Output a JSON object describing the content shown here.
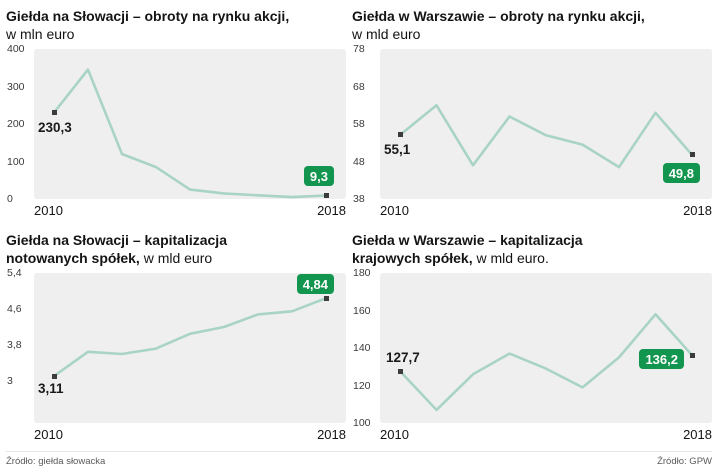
{
  "footer": {
    "left_source": "Źródło: giełda słowacka",
    "right_source": "Źródło: GPW"
  },
  "colors": {
    "line": "#a9d4c5",
    "badge_bg": "#12954e",
    "badge_text": "#ffffff",
    "panel_bg": "#efefef",
    "marker": "#3c3c3c"
  },
  "chart_data": [
    {
      "type": "line",
      "title_line1": "Giełda na Słowacji – obroty na rynku akcji,",
      "title_line2_bold": "",
      "title_line2_normal": "w mln euro",
      "x": [
        "2010",
        "2011",
        "2012",
        "2013",
        "2014",
        "2015",
        "2016",
        "2017",
        "2018"
      ],
      "values": [
        230.3,
        345,
        120,
        85,
        25,
        15,
        10,
        5,
        9.3
      ],
      "ylim": [
        0,
        400
      ],
      "yticks": [
        "400",
        "300",
        "200",
        "100",
        "0"
      ],
      "scale_frac": 1,
      "grid": false,
      "legend": "none",
      "first_label": "230,3",
      "last_label": "9,3",
      "x_first": "2010",
      "x_last": "2018"
    },
    {
      "type": "line",
      "title_line1": "Giełda w Warszawie – obroty na rynku akcji,",
      "title_line2_bold": "",
      "title_line2_normal": "w mld euro",
      "x": [
        "2010",
        "2011",
        "2012",
        "2013",
        "2014",
        "2015",
        "2016",
        "2017",
        "2018"
      ],
      "values": [
        55.1,
        63,
        47,
        60,
        55,
        52.5,
        46.5,
        61,
        49.8
      ],
      "ylim": [
        38,
        78
      ],
      "yticks": [
        "78",
        "68",
        "58",
        "48",
        "38"
      ],
      "scale_frac": 1,
      "grid": false,
      "legend": "none",
      "first_label": "55,1",
      "last_label": "49,8",
      "x_first": "2010",
      "x_last": "2018"
    },
    {
      "type": "line",
      "title_line1": "Giełda na Słowacji – kapitalizacja",
      "title_line2_bold": "notowanych spółek,",
      "title_line2_normal": " w mld euro",
      "x": [
        "2010",
        "2011",
        "2012",
        "2013",
        "2014",
        "2015",
        "2016",
        "2017",
        "2018"
      ],
      "values": [
        3.11,
        3.65,
        3.6,
        3.72,
        4.05,
        4.2,
        4.48,
        4.55,
        4.84
      ],
      "ylim": [
        3,
        5.4
      ],
      "yticks": [
        "5,4",
        "4,6",
        "3,8",
        "3"
      ],
      "scale_frac": 0.72,
      "grid": false,
      "legend": "none",
      "first_label": "3,11",
      "last_label": "4,84",
      "x_first": "2010",
      "x_last": "2018"
    },
    {
      "type": "line",
      "title_line1": "Giełda w Warszawie – kapitalizacja",
      "title_line2_bold": "krajowych spółek,",
      "title_line2_normal": " w mld euro.",
      "x": [
        "2010",
        "2011",
        "2012",
        "2013",
        "2014",
        "2015",
        "2016",
        "2017",
        "2018"
      ],
      "values": [
        127.7,
        107,
        126,
        137,
        129,
        119,
        135,
        158,
        136.2
      ],
      "ylim": [
        100,
        180
      ],
      "yticks": [
        "180",
        "160",
        "140",
        "120",
        "100"
      ],
      "scale_frac": 1,
      "grid": false,
      "legend": "none",
      "first_label": "127,7",
      "last_label": "136,2",
      "x_first": "2010",
      "x_last": "2018"
    }
  ]
}
